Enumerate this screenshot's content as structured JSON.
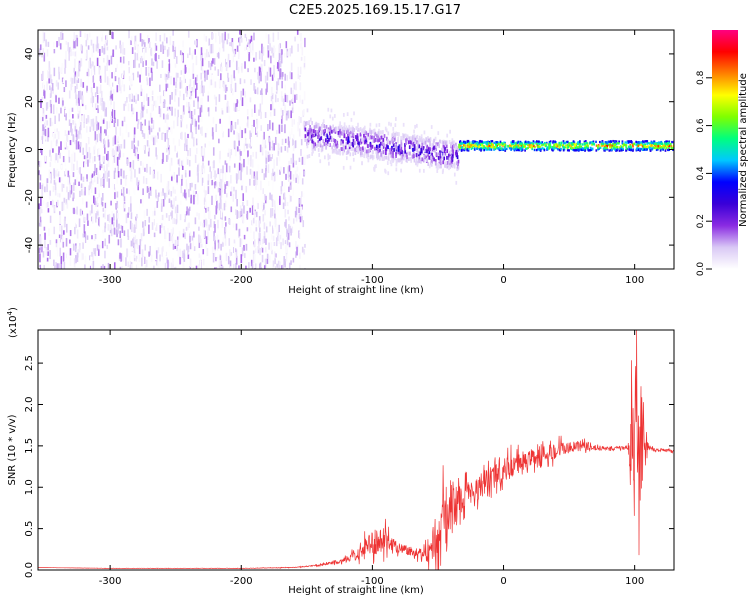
{
  "title": "C2E5.2025.169.15.17.G17",
  "chart_data": [
    {
      "type": "heatmap",
      "xlabel": "Height of straight line (km)",
      "ylabel": "Frequency (Hz)",
      "xlim": [
        -355,
        130
      ],
      "ylim": [
        -50,
        50
      ],
      "x_ticks": [
        -300,
        -200,
        -100,
        0,
        100
      ],
      "y_ticks": [
        -40,
        -20,
        0,
        20,
        40
      ],
      "grid": false,
      "colorbar": {
        "label": "Normalized spectral amplitude",
        "range": [
          0,
          1
        ],
        "ticks": [
          0.0,
          0.2,
          0.4,
          0.6,
          0.8
        ],
        "colormap": [
          "#ffffff",
          "#d9c8f5",
          "#8a2be2",
          "#3a00d8",
          "#0000ff",
          "#00c8ff",
          "#00ff7f",
          "#7fff00",
          "#ffff00",
          "#ff8000",
          "#ff0000",
          "#ff0080"
        ]
      },
      "regions": [
        {
          "x": [
            -355,
            -152
          ],
          "freq_range": [
            -50,
            50
          ],
          "amplitude": [
            0.0,
            0.15
          ],
          "pattern": "broadband noise"
        },
        {
          "x": [
            -152,
            -35
          ],
          "freq_center_start": 7,
          "freq_center_end": -2,
          "freq_width": 12,
          "amplitude": [
            0.05,
            0.35
          ],
          "pattern": "descending carrier"
        },
        {
          "x": [
            -35,
            130
          ],
          "freq_center": 2,
          "freq_width": 4,
          "amplitude": [
            0.3,
            0.95
          ],
          "pattern": "stable carrier"
        }
      ]
    },
    {
      "type": "line",
      "xlabel": "Height of straight line (km)",
      "ylabel": "SNR (10 * v/v)",
      "y_multiplier": "(x10",
      "y_multiplier_exp": "4",
      "xlim": [
        -355,
        130
      ],
      "ylim": [
        0,
        2.9
      ],
      "x_ticks": [
        -300,
        -200,
        -100,
        0,
        100
      ],
      "y_ticks": [
        "0.0",
        "0.5",
        "1.0",
        "1.5",
        "2.0",
        "2.5"
      ],
      "line_color": "#ee3333",
      "series": [
        {
          "x": [
            -355,
            -300,
            -250,
            -200,
            -160,
            -140,
            -120,
            -110,
            -100,
            -90,
            -80,
            -70,
            -60,
            -50,
            -45,
            -40,
            -35,
            -30,
            -20,
            -10,
            0,
            10,
            20,
            30,
            40,
            50,
            60,
            70,
            80,
            90,
            95,
            100,
            103,
            106,
            110,
            115,
            120,
            130
          ],
          "y": [
            0.03,
            0.02,
            0.02,
            0.02,
            0.03,
            0.06,
            0.12,
            0.2,
            0.35,
            0.32,
            0.28,
            0.22,
            0.2,
            0.35,
            0.6,
            0.75,
            0.8,
            0.9,
            1.0,
            1.1,
            1.2,
            1.28,
            1.35,
            1.4,
            1.45,
            1.48,
            1.5,
            1.48,
            1.47,
            1.47,
            1.48,
            1.6,
            1.2,
            1.5,
            1.5,
            1.45,
            1.45,
            1.43
          ],
          "noise": [
            0,
            0.003,
            0.003,
            0.004,
            0.006,
            0.02,
            0.06,
            0.15,
            0.3,
            0.3,
            0.15,
            0.1,
            0.15,
            0.8,
            0.9,
            0.5,
            0.4,
            0.3,
            0.3,
            0.3,
            0.3,
            0.25,
            0.2,
            0.2,
            0.2,
            0.15,
            0.1,
            0.06,
            0.05,
            0.04,
            0.06,
            2.2,
            2.5,
            1.3,
            0.06,
            0.05,
            0.04,
            0.04
          ]
        }
      ]
    }
  ]
}
